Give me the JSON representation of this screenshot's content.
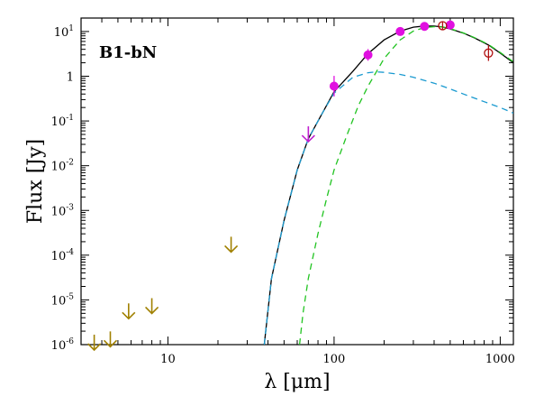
{
  "chart_data": {
    "type": "scatter",
    "panel_label": "B1-bN",
    "xlabel": "λ [μm]",
    "ylabel": "Flux [Jy]",
    "x_scale": "log",
    "y_scale": "log",
    "xlim": [
      3,
      1200
    ],
    "ylim": [
      1e-06,
      20
    ],
    "x_ticks": [
      {
        "value": 10,
        "label": "10"
      },
      {
        "value": 100,
        "label": "100"
      },
      {
        "value": 1000,
        "label": "1000"
      }
    ],
    "y_ticks": [
      {
        "value": 1e-06,
        "base": "10",
        "exp": "-6"
      },
      {
        "value": 1e-05,
        "base": "10",
        "exp": "-5"
      },
      {
        "value": 0.0001,
        "base": "10",
        "exp": "-4"
      },
      {
        "value": 0.001,
        "base": "10",
        "exp": "-3"
      },
      {
        "value": 0.01,
        "base": "10",
        "exp": "-2"
      },
      {
        "value": 0.1,
        "base": "10",
        "exp": "-1"
      },
      {
        "value": 1,
        "base": "1",
        "exp": ""
      },
      {
        "value": 10,
        "base": "10",
        "exp": "1"
      }
    ],
    "grid": false,
    "colors": {
      "total_model": "#000000",
      "warm_component": "#1a9ad0",
      "cold_component": "#22c422",
      "detections": "#e010e0",
      "upper_limits_mir": "#a08000",
      "upper_limit_70": "#c020d0",
      "open_symbols": "#b01010"
    },
    "series": [
      {
        "kind": "line",
        "style": "solid",
        "color_key": "total_model",
        "x": [
          38,
          42,
          50,
          60,
          70,
          85,
          100,
          130,
          160,
          200,
          250,
          300,
          350,
          400,
          450,
          500,
          600,
          700,
          850,
          1000,
          1200
        ],
        "y": [
          1e-06,
          3e-05,
          0.0006,
          0.008,
          0.04,
          0.15,
          0.45,
          1.3,
          3.2,
          6.5,
          10.2,
          12.5,
          13.3,
          13.2,
          12.6,
          11.4,
          9.2,
          7.2,
          5.0,
          3.3,
          2.0
        ]
      },
      {
        "kind": "line",
        "style": "dashed",
        "color_key": "warm_component",
        "x": [
          38,
          42,
          50,
          60,
          70,
          85,
          100,
          130,
          160,
          180,
          200,
          250,
          300,
          400,
          500,
          600,
          800,
          1000,
          1200
        ],
        "y": [
          1e-06,
          3e-05,
          0.0006,
          0.008,
          0.04,
          0.15,
          0.42,
          0.95,
          1.2,
          1.25,
          1.22,
          1.1,
          0.95,
          0.7,
          0.52,
          0.4,
          0.27,
          0.2,
          0.15
        ]
      },
      {
        "kind": "line",
        "style": "dashed",
        "color_key": "cold_component",
        "x": [
          62,
          65,
          70,
          80,
          90,
          100,
          120,
          140,
          160,
          200,
          250,
          300,
          350,
          400,
          450,
          500,
          600,
          700,
          850,
          1000,
          1200
        ],
        "y": [
          1e-06,
          5e-06,
          3e-05,
          0.0003,
          0.0018,
          0.008,
          0.05,
          0.22,
          0.6,
          2.5,
          6.5,
          10.2,
          12.3,
          12.8,
          12.6,
          11.6,
          9.3,
          7.3,
          5.1,
          3.4,
          2.1
        ]
      },
      {
        "kind": "points",
        "marker": "filled-circle",
        "color_key": "detections",
        "x": [
          100,
          160,
          250,
          350,
          500
        ],
        "y": [
          0.6,
          3.0,
          10.0,
          13.0,
          14.0
        ],
        "yerr_factor": [
          1.7,
          1.35,
          1.15,
          1.1,
          1.15
        ]
      },
      {
        "kind": "points",
        "marker": "open-circle",
        "color_key": "open_symbols",
        "x": [
          450,
          850
        ],
        "y": [
          13.5,
          3.3
        ],
        "yerr_factor": [
          1.25,
          1.5
        ]
      },
      {
        "kind": "upper_limits",
        "color_key": "upper_limits_mir",
        "x": [
          3.6,
          4.5,
          5.8,
          8.0,
          24.0
        ],
        "y": [
          1.1e-06,
          1.3e-06,
          5.5e-06,
          7.2e-06,
          0.00017
        ]
      },
      {
        "kind": "upper_limits",
        "color_key": "upper_limit_70",
        "x": [
          70
        ],
        "y": [
          0.05
        ]
      }
    ]
  }
}
